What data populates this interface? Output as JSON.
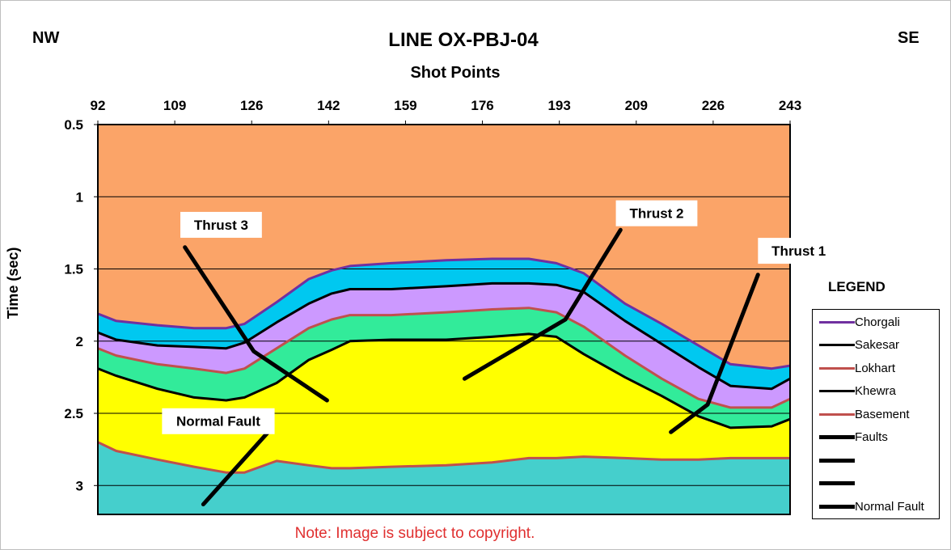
{
  "header": {
    "direction_left": "NW",
    "direction_right": "SE"
  },
  "note": "Note: Image is subject to copyright.",
  "legend": {
    "title": "LEGEND",
    "items": [
      {
        "label": "Chorgali",
        "color": "#7030a0",
        "style": "thin"
      },
      {
        "label": "Sakesar",
        "color": "#000000",
        "style": "thin"
      },
      {
        "label": "Lokhart",
        "color": "#c0504d",
        "style": "thin"
      },
      {
        "label": "Khewra",
        "color": "#000000",
        "style": "thin"
      },
      {
        "label": "Basement",
        "color": "#c0504d",
        "style": "thin"
      },
      {
        "label": "Faults",
        "color": "#000000",
        "style": "thick"
      },
      {
        "label": "",
        "color": "#000000",
        "style": "thick"
      },
      {
        "label": "",
        "color": "#000000",
        "style": "thick"
      },
      {
        "label": "Normal Fault",
        "color": "#000000",
        "style": "thick"
      }
    ]
  },
  "chart_data": {
    "type": "area",
    "title": "LINE OX-PBJ-04",
    "xlabel": "Shot Points",
    "ylabel": "Time (sec)",
    "x_ticks": [
      "92",
      "109",
      "126",
      "142",
      "159",
      "176",
      "193",
      "209",
      "226",
      "243"
    ],
    "y_ticks": [
      "0.5",
      "1",
      "1.5",
      "2",
      "2.5",
      "3"
    ],
    "xlim": [
      92,
      243
    ],
    "ylim": [
      0.5,
      3.2
    ],
    "y_inverted": true,
    "x_axis_position": "top",
    "grid": "horizontal",
    "x": [
      92,
      96,
      105,
      113,
      120,
      124,
      131,
      138,
      143,
      147,
      156,
      168,
      178,
      186,
      192,
      198,
      207,
      215,
      223,
      230,
      239,
      243
    ],
    "series": [
      {
        "name": "Chorgali",
        "color": "#7030a0",
        "values": [
          1.81,
          1.86,
          1.89,
          1.91,
          1.91,
          1.88,
          1.73,
          1.57,
          1.51,
          1.48,
          1.46,
          1.44,
          1.43,
          1.43,
          1.46,
          1.53,
          1.74,
          1.88,
          2.03,
          2.16,
          2.19,
          2.17
        ]
      },
      {
        "name": "Sakesar",
        "color": "#000000",
        "values": [
          1.94,
          1.99,
          2.03,
          2.04,
          2.05,
          2.01,
          1.87,
          1.74,
          1.67,
          1.64,
          1.64,
          1.62,
          1.6,
          1.6,
          1.61,
          1.66,
          1.86,
          2.02,
          2.18,
          2.31,
          2.33,
          2.26
        ]
      },
      {
        "name": "Lokhart",
        "color": "#c0504d",
        "values": [
          2.05,
          2.1,
          2.16,
          2.19,
          2.22,
          2.19,
          2.05,
          1.91,
          1.85,
          1.82,
          1.82,
          1.8,
          1.78,
          1.77,
          1.8,
          1.9,
          2.1,
          2.26,
          2.4,
          2.46,
          2.46,
          2.4
        ]
      },
      {
        "name": "Khewra",
        "color": "#000000",
        "values": [
          2.19,
          2.24,
          2.33,
          2.39,
          2.41,
          2.39,
          2.29,
          2.13,
          2.06,
          2.0,
          1.99,
          1.99,
          1.97,
          1.95,
          1.97,
          2.09,
          2.25,
          2.38,
          2.52,
          2.6,
          2.59,
          2.54
        ]
      },
      {
        "name": "Basement",
        "color": "#c0504d",
        "values": [
          2.7,
          2.76,
          2.82,
          2.87,
          2.91,
          2.91,
          2.83,
          2.86,
          2.88,
          2.88,
          2.87,
          2.86,
          2.84,
          2.81,
          2.81,
          2.8,
          2.81,
          2.82,
          2.82,
          2.81,
          2.81,
          2.81
        ]
      }
    ],
    "fills": [
      "#fba468",
      "#00c8f0",
      "#cc99ff",
      "#32eb9a",
      "#ffff00",
      "#45cfcc"
    ],
    "faults": [
      {
        "label": "Thrust 3",
        "label_at": [
          110,
          1.2
        ],
        "points": [
          [
            111,
            1.35
          ],
          [
            126,
            2.07
          ],
          [
            142,
            2.41
          ]
        ]
      },
      {
        "label": "Thrust 2",
        "label_at": [
          205,
          1.12
        ],
        "points": [
          [
            206,
            1.23
          ],
          [
            194,
            1.85
          ],
          [
            172,
            2.26
          ]
        ]
      },
      {
        "label": "Thrust 1",
        "label_at": [
          236,
          1.38
        ],
        "points": [
          [
            236,
            1.54
          ],
          [
            225,
            2.44
          ],
          [
            217,
            2.63
          ]
        ]
      },
      {
        "label": "Normal Fault",
        "label_at": [
          106,
          2.56
        ],
        "points": [
          [
            130,
            2.6
          ],
          [
            115,
            3.13
          ]
        ]
      }
    ]
  }
}
